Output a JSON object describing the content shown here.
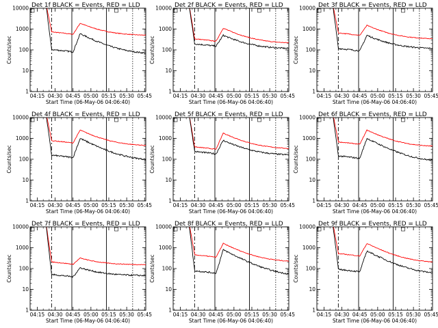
{
  "chart_data": {
    "type": "line",
    "layout": "3x3 grid",
    "y_scale": "log",
    "ylabel": "Counts/sec",
    "ylim": [
      1,
      10000
    ],
    "y_ticks": [
      "1",
      "10",
      "100",
      "1000",
      "10000"
    ],
    "x_ticks": [
      "04:15",
      "04:30",
      "04:45",
      "05:00",
      "05:15",
      "05:30",
      "05:45"
    ],
    "xlabel": "Start Time (06-May-06 04:06:40)",
    "series_colors": {
      "events": "#000000",
      "lld": "#ff0000"
    },
    "markers": {
      "dashed_x": "04:27",
      "solid_x": [
        "04:44",
        "05:13"
      ],
      "dotted_x": "05:35"
    },
    "panels": [
      {
        "title": "Det 1f BLACK = Events, RED = LLD",
        "lld": {
          "pre": 560,
          "peak": 1900,
          "post": 480
        },
        "events": {
          "pre": 80,
          "peak": 600,
          "post": 60
        }
      },
      {
        "title": "Det 2f BLACK = Events, RED = LLD",
        "lld": {
          "pre": 260,
          "peak": 1100,
          "post": 200
        },
        "events": {
          "pre": 150,
          "peak": 500,
          "post": 110
        }
      },
      {
        "title": "Det 3f BLACK = Events, RED = LLD",
        "lld": {
          "pre": 500,
          "peak": 1500,
          "post": 320
        },
        "events": {
          "pre": 90,
          "peak": 500,
          "post": 110
        }
      },
      {
        "title": "Det 4f BLACK = Events, RED = LLD",
        "lld": {
          "pre": 600,
          "peak": 2500,
          "post": 420
        },
        "events": {
          "pre": 120,
          "peak": 1000,
          "post": 80
        }
      },
      {
        "title": "Det 5f BLACK = Events, RED = LLD",
        "lld": {
          "pre": 300,
          "peak": 1800,
          "post": 300
        },
        "events": {
          "pre": 180,
          "peak": 800,
          "post": 150
        }
      },
      {
        "title": "Det 6f BLACK = Events, RED = LLD",
        "lld": {
          "pre": 520,
          "peak": 2500,
          "post": 380
        },
        "events": {
          "pre": 110,
          "peak": 1000,
          "post": 70
        }
      },
      {
        "title": "Det 7f BLACK = Events, RED = LLD",
        "lld": {
          "pre": 160,
          "peak": 320,
          "post": 150
        },
        "events": {
          "pre": 40,
          "peak": 110,
          "post": 45
        }
      },
      {
        "title": "Det 8f BLACK = Events, RED = LLD",
        "lld": {
          "pre": 350,
          "peak": 1600,
          "post": 200
        },
        "events": {
          "pre": 60,
          "peak": 800,
          "post": 40
        }
      },
      {
        "title": "Det 9f BLACK = Events, RED = LLD",
        "lld": {
          "pre": 400,
          "peak": 1600,
          "post": 180
        },
        "events": {
          "pre": 70,
          "peak": 700,
          "post": 50
        }
      }
    ]
  }
}
